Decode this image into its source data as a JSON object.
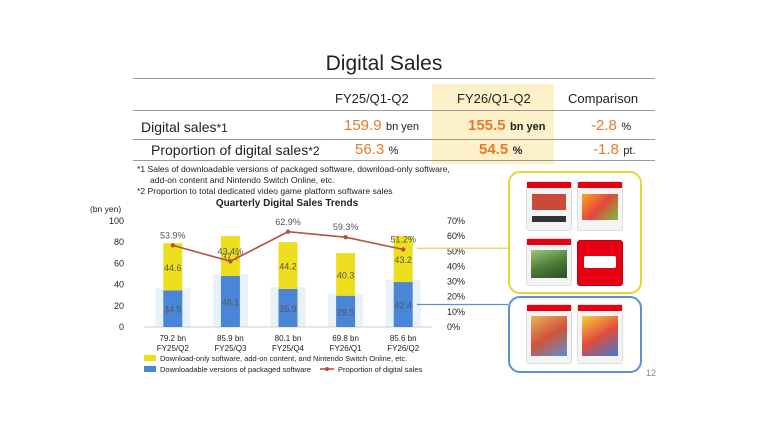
{
  "title": "Digital Sales",
  "table": {
    "col_fy25": "FY25/Q1-Q2",
    "col_fy26": "FY26/Q1-Q2",
    "col_comp": "Comparison",
    "row1_label": "Digital sales",
    "row1_note": "*1",
    "row1_fy25": "159.9",
    "row1_fy25_unit": "bn yen",
    "row1_fy26": "155.5",
    "row1_fy26_unit": "bn yen",
    "row1_comp": "-2.8",
    "row1_comp_unit": "%",
    "row2_label": "Proportion of digital sales",
    "row2_note": "*2",
    "row2_fy25": "56.3",
    "row2_fy25_unit": "%",
    "row2_fy26": "54.5",
    "row2_fy26_unit": "%",
    "row2_comp": "-1.8",
    "row2_comp_unit": "pt."
  },
  "notes": {
    "n1a": "*1 Sales of downloadable versions of packaged software, download-only software,",
    "n1b": "add-on content and Nintendo Switch Online, etc.",
    "n2": "*2 Proportion to total dedicated video game platform software sales"
  },
  "chart_data": {
    "type": "bar",
    "title": "Quarterly Digital Sales Trends",
    "ylabel": "(bn yen)",
    "ylim": [
      0,
      100
    ],
    "y2lim": [
      0,
      70
    ],
    "y_ticks": [
      "0",
      "20",
      "40",
      "60",
      "80",
      "100"
    ],
    "y2_ticks": [
      "0%",
      "10%",
      "20%",
      "30%",
      "40%",
      "50%",
      "60%",
      "70%"
    ],
    "categories": [
      "FY25/Q2",
      "FY25/Q3",
      "FY25/Q4",
      "FY26/Q1",
      "FY26/Q2"
    ],
    "totals": [
      "79.2 bn",
      "85.9 bn",
      "80.1 bn",
      "69.8 bn",
      "85.6 bn"
    ],
    "series": [
      {
        "name": "Downloadable versions of packaged software",
        "values": [
          34.5,
          48.1,
          35.9,
          29.5,
          42.4
        ],
        "labels": [
          "34.5",
          "48.1",
          "35.9",
          "29.5",
          "42.4"
        ],
        "color": "#4a86d8"
      },
      {
        "name": "Download-only software, add-on content, and Nintendo Switch Online, etc.",
        "values": [
          44.6,
          37.7,
          44.2,
          40.3,
          43.2
        ],
        "labels": [
          "44.6",
          "37.7",
          "44.2",
          "40.3",
          "43.2"
        ],
        "color": "#eedf1e"
      },
      {
        "name": "Proportion of digital sales",
        "values": [
          53.9,
          43.4,
          62.9,
          59.3,
          51.2
        ],
        "labels": [
          "53.9%",
          "43.4%",
          "62.9%",
          "59.3%",
          "51.2%"
        ],
        "color": "#b5543a"
      }
    ]
  },
  "page_number": "12",
  "colors": {
    "accent_orange": "#e8792b",
    "highlight": "#fdf1c9",
    "frame_yellow": "#e6d63a",
    "frame_blue": "#5b8fd6"
  }
}
